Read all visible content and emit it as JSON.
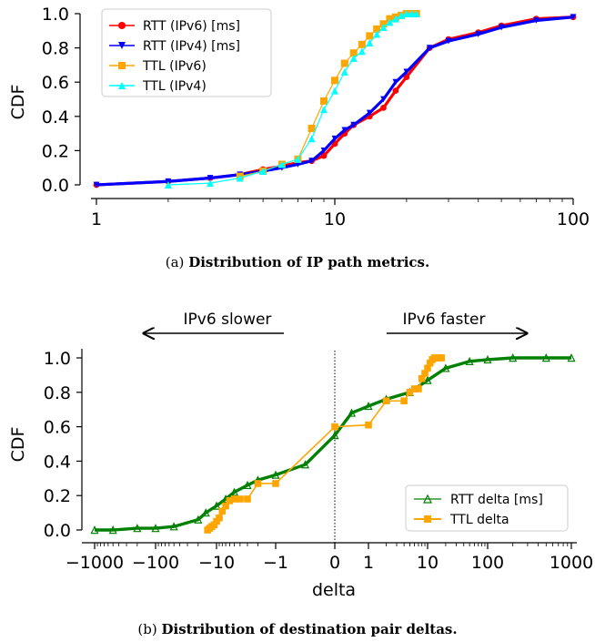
{
  "chart_data": [
    {
      "type": "line",
      "ylabel": "CDF",
      "xscale": "log",
      "xlim": [
        1,
        100
      ],
      "ylim": [
        0,
        1
      ],
      "xticks": [
        "1",
        "10",
        "100"
      ],
      "yticks": [
        "0.0",
        "0.2",
        "0.4",
        "0.6",
        "0.8",
        "1.0"
      ],
      "legend_position": "top-left",
      "caption_prefix": "(a)",
      "caption": "Distribution of IP path metrics.",
      "colors": {
        "rtt6": "#ff0000",
        "rtt4": "#0000ff",
        "ttl6": "#ffa500",
        "ttl4": "#00ffff"
      },
      "series": [
        {
          "name": "RTT (IPv6) [ms]",
          "x": [
            1,
            2,
            3,
            4,
            5,
            6,
            7,
            8,
            9,
            10,
            11,
            12,
            14,
            16,
            18,
            20,
            25,
            30,
            40,
            50,
            70,
            100
          ],
          "y": [
            0.0,
            0.02,
            0.04,
            0.06,
            0.09,
            0.11,
            0.13,
            0.14,
            0.17,
            0.24,
            0.3,
            0.35,
            0.4,
            0.45,
            0.55,
            0.63,
            0.8,
            0.85,
            0.89,
            0.93,
            0.97,
            0.98
          ]
        },
        {
          "name": "RTT (IPv4) [ms]",
          "x": [
            1,
            2,
            3,
            4,
            5,
            6,
            7,
            8,
            9,
            10,
            11,
            12,
            14,
            16,
            18,
            20,
            25,
            30,
            40,
            50,
            70,
            100
          ],
          "y": [
            0.0,
            0.02,
            0.04,
            0.06,
            0.08,
            0.1,
            0.12,
            0.14,
            0.2,
            0.27,
            0.32,
            0.35,
            0.42,
            0.5,
            0.6,
            0.66,
            0.8,
            0.84,
            0.88,
            0.92,
            0.96,
            0.98
          ]
        },
        {
          "name": "TTL (IPv6)",
          "x": [
            4,
            5,
            6,
            7,
            8,
            9,
            10,
            11,
            12,
            13,
            14,
            15,
            16,
            17,
            18,
            19,
            20,
            21,
            22
          ],
          "y": [
            0.05,
            0.08,
            0.12,
            0.15,
            0.33,
            0.49,
            0.61,
            0.71,
            0.77,
            0.82,
            0.87,
            0.91,
            0.94,
            0.97,
            0.98,
            0.99,
            1.0,
            1.0,
            1.0
          ]
        },
        {
          "name": "TTL (IPv4)",
          "x": [
            2,
            3,
            4,
            5,
            6,
            7,
            8,
            9,
            10,
            11,
            12,
            13,
            14,
            15,
            16,
            17,
            18,
            19,
            20,
            21,
            22
          ],
          "y": [
            0.0,
            0.01,
            0.04,
            0.08,
            0.12,
            0.15,
            0.27,
            0.44,
            0.55,
            0.66,
            0.74,
            0.78,
            0.83,
            0.88,
            0.92,
            0.95,
            0.97,
            0.99,
            1.0,
            1.0,
            1.0
          ]
        }
      ]
    },
    {
      "type": "line",
      "xlabel": "delta",
      "ylabel": "CDF",
      "xscale": "symlog",
      "xlim": [
        -1000,
        1000
      ],
      "ylim": [
        0,
        1
      ],
      "xticks": [
        "−1000",
        "−100",
        "−10",
        "−1",
        "0",
        "1",
        "10",
        "100",
        "1000"
      ],
      "yticks": [
        "0.0",
        "0.2",
        "0.4",
        "0.6",
        "0.8",
        "1.0"
      ],
      "legend_position": "bottom-right",
      "annotations": {
        "left": "IPv6 slower",
        "right": "IPv6 faster"
      },
      "caption_prefix": "(b)",
      "caption": "Distribution of destination pair deltas.",
      "colors": {
        "rtt": "#008000",
        "ttl": "#ffa500"
      },
      "series": [
        {
          "name": "RTT delta [ms]",
          "x": [
            -1000,
            -500,
            -200,
            -100,
            -50,
            -20,
            -15,
            -10,
            -7,
            -5,
            -3,
            -2,
            -1,
            -0.5,
            0,
            0.5,
            1,
            2,
            5,
            10,
            20,
            50,
            100,
            200,
            500,
            1000
          ],
          "y": [
            0.0,
            0.0,
            0.01,
            0.01,
            0.02,
            0.06,
            0.1,
            0.14,
            0.18,
            0.22,
            0.26,
            0.29,
            0.32,
            0.38,
            0.55,
            0.68,
            0.72,
            0.76,
            0.8,
            0.87,
            0.94,
            0.98,
            0.99,
            1.0,
            1.0,
            1.0
          ]
        },
        {
          "name": "TTL delta",
          "x": [
            -14,
            -13,
            -12,
            -11,
            -10,
            -9,
            -8,
            -7,
            -6,
            -5,
            -4,
            -3,
            -2,
            -1,
            0,
            1,
            2,
            4,
            5,
            6,
            7,
            8,
            9,
            10,
            11,
            12,
            13,
            14,
            15,
            16,
            17
          ],
          "y": [
            0.0,
            0.01,
            0.02,
            0.03,
            0.05,
            0.07,
            0.11,
            0.14,
            0.17,
            0.18,
            0.18,
            0.18,
            0.27,
            0.27,
            0.6,
            0.61,
            0.75,
            0.75,
            0.8,
            0.82,
            0.82,
            0.88,
            0.91,
            0.94,
            0.97,
            0.99,
            1.0,
            1.0,
            1.0,
            1.0,
            1.0
          ]
        }
      ]
    }
  ]
}
